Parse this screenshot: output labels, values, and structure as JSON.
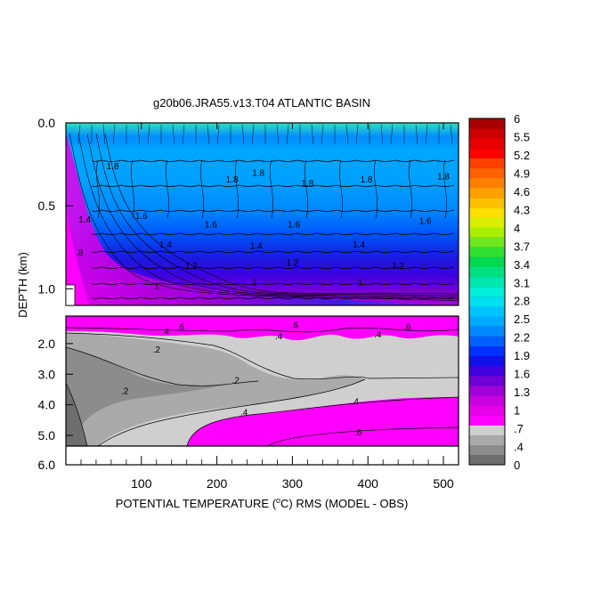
{
  "chart_data": {
    "type": "heatmap",
    "title": "g20b06.JRA55.v13.T04 ATLANTIC BASIN",
    "xlabel": "POTENTIAL TEMPERATURE (°C) RMS (MODEL - OBS)",
    "xlabel_prefix": "POTENTIAL TEMPERATURE (",
    "xlabel_sup": "o",
    "xlabel_suffix": "C) RMS (MODEL - OBS)",
    "ylabel": "DEPTH (km)",
    "xlim": [
      0,
      520
    ],
    "x_ticks": [
      "100",
      "200",
      "300",
      "400",
      "500"
    ],
    "x_tick_values": [
      100,
      200,
      300,
      400,
      500
    ],
    "upper_panel": {
      "ylim": [
        0.0,
        1.1
      ],
      "y_ticks": [
        "0.0",
        "0.5",
        "1.0"
      ],
      "y_tick_values": [
        0.0,
        0.5,
        1.0
      ],
      "contour_labels": [
        {
          "text": "1.8",
          "x": 220,
          "y": 0.36
        },
        {
          "text": "1.8",
          "x": 255,
          "y": 0.32
        },
        {
          "text": "1.8",
          "x": 320,
          "y": 0.38
        },
        {
          "text": "1.8",
          "x": 398,
          "y": 0.36
        },
        {
          "text": "1.8",
          "x": 500,
          "y": 0.34
        },
        {
          "text": "1.8",
          "x": 62,
          "y": 0.28
        },
        {
          "text": "1.6",
          "x": 100,
          "y": 0.58
        },
        {
          "text": "1.6",
          "x": 192,
          "y": 0.63
        },
        {
          "text": "1.6",
          "x": 302,
          "y": 0.63
        },
        {
          "text": "1.6",
          "x": 476,
          "y": 0.61
        },
        {
          "text": "1.4",
          "x": 132,
          "y": 0.75
        },
        {
          "text": "1.4",
          "x": 252,
          "y": 0.76
        },
        {
          "text": "1.4",
          "x": 388,
          "y": 0.75
        },
        {
          "text": "1.2",
          "x": 166,
          "y": 0.88
        },
        {
          "text": "1.2",
          "x": 300,
          "y": 0.86
        },
        {
          "text": "1.2",
          "x": 440,
          "y": 0.88
        },
        {
          "text": "1",
          "x": 120,
          "y": 1.0
        },
        {
          "text": "1",
          "x": 250,
          "y": 0.98
        },
        {
          "text": "1",
          "x": 390,
          "y": 0.98
        },
        {
          "text": ".8",
          "x": 18,
          "y": 0.8
        },
        {
          "text": "1.4",
          "x": 25,
          "y": 0.6
        }
      ]
    },
    "lower_panel": {
      "ylim": [
        1.1,
        6.0
      ],
      "y_ticks": [
        "2.0",
        "3.0",
        "4.0",
        "5.0",
        "6.0"
      ],
      "y_tick_values": [
        2.0,
        3.0,
        4.0,
        5.0,
        6.0
      ],
      "contour_labels": [
        {
          "text": ".4",
          "x": 132,
          "y": 1.7
        },
        {
          "text": ".6",
          "x": 152,
          "y": 1.55
        },
        {
          "text": ".6",
          "x": 303,
          "y": 1.5
        },
        {
          "text": ".4",
          "x": 282,
          "y": 1.85
        },
        {
          "text": ".4",
          "x": 413,
          "y": 1.8
        },
        {
          "text": ".6",
          "x": 452,
          "y": 1.55
        },
        {
          "text": ".2",
          "x": 120,
          "y": 2.3
        },
        {
          "text": ".2",
          "x": 78,
          "y": 3.65
        },
        {
          "text": ".2",
          "x": 225,
          "y": 3.3
        },
        {
          "text": ".4",
          "x": 236,
          "y": 4.35
        },
        {
          "text": ".4",
          "x": 383,
          "y": 4.0
        },
        {
          "text": ".6",
          "x": 387,
          "y": 5.0
        }
      ]
    },
    "colorbar": {
      "label_values": [
        "6",
        "5.5",
        "5.2",
        "4.9",
        "4.6",
        "4.3",
        "4",
        "3.7",
        "3.4",
        "3.1",
        "2.8",
        "2.5",
        "2.2",
        "1.9",
        "1.6",
        "1.3",
        "1",
        ".7",
        ".4",
        "0"
      ],
      "colors_bottom_to_top": [
        "#6e6e6e",
        "#8c8c8c",
        "#aaaaaa",
        "#cfcfcf",
        "#ff00ff",
        "#e800ec",
        "#c800e0",
        "#a000d8",
        "#7000d8",
        "#4000e0",
        "#1010e8",
        "#0030ff",
        "#0060ff",
        "#0088ff",
        "#00aaff",
        "#00c4ff",
        "#00e0f0",
        "#00f0d8",
        "#00e8b0",
        "#00e080",
        "#00d850",
        "#30e030",
        "#70e820",
        "#a8f000",
        "#d8f000",
        "#ffe000",
        "#ffc000",
        "#ffa000",
        "#ff8000",
        "#ff6000",
        "#ff4000",
        "#ff0000",
        "#e80000",
        "#cc0000",
        "#a80000"
      ]
    }
  }
}
